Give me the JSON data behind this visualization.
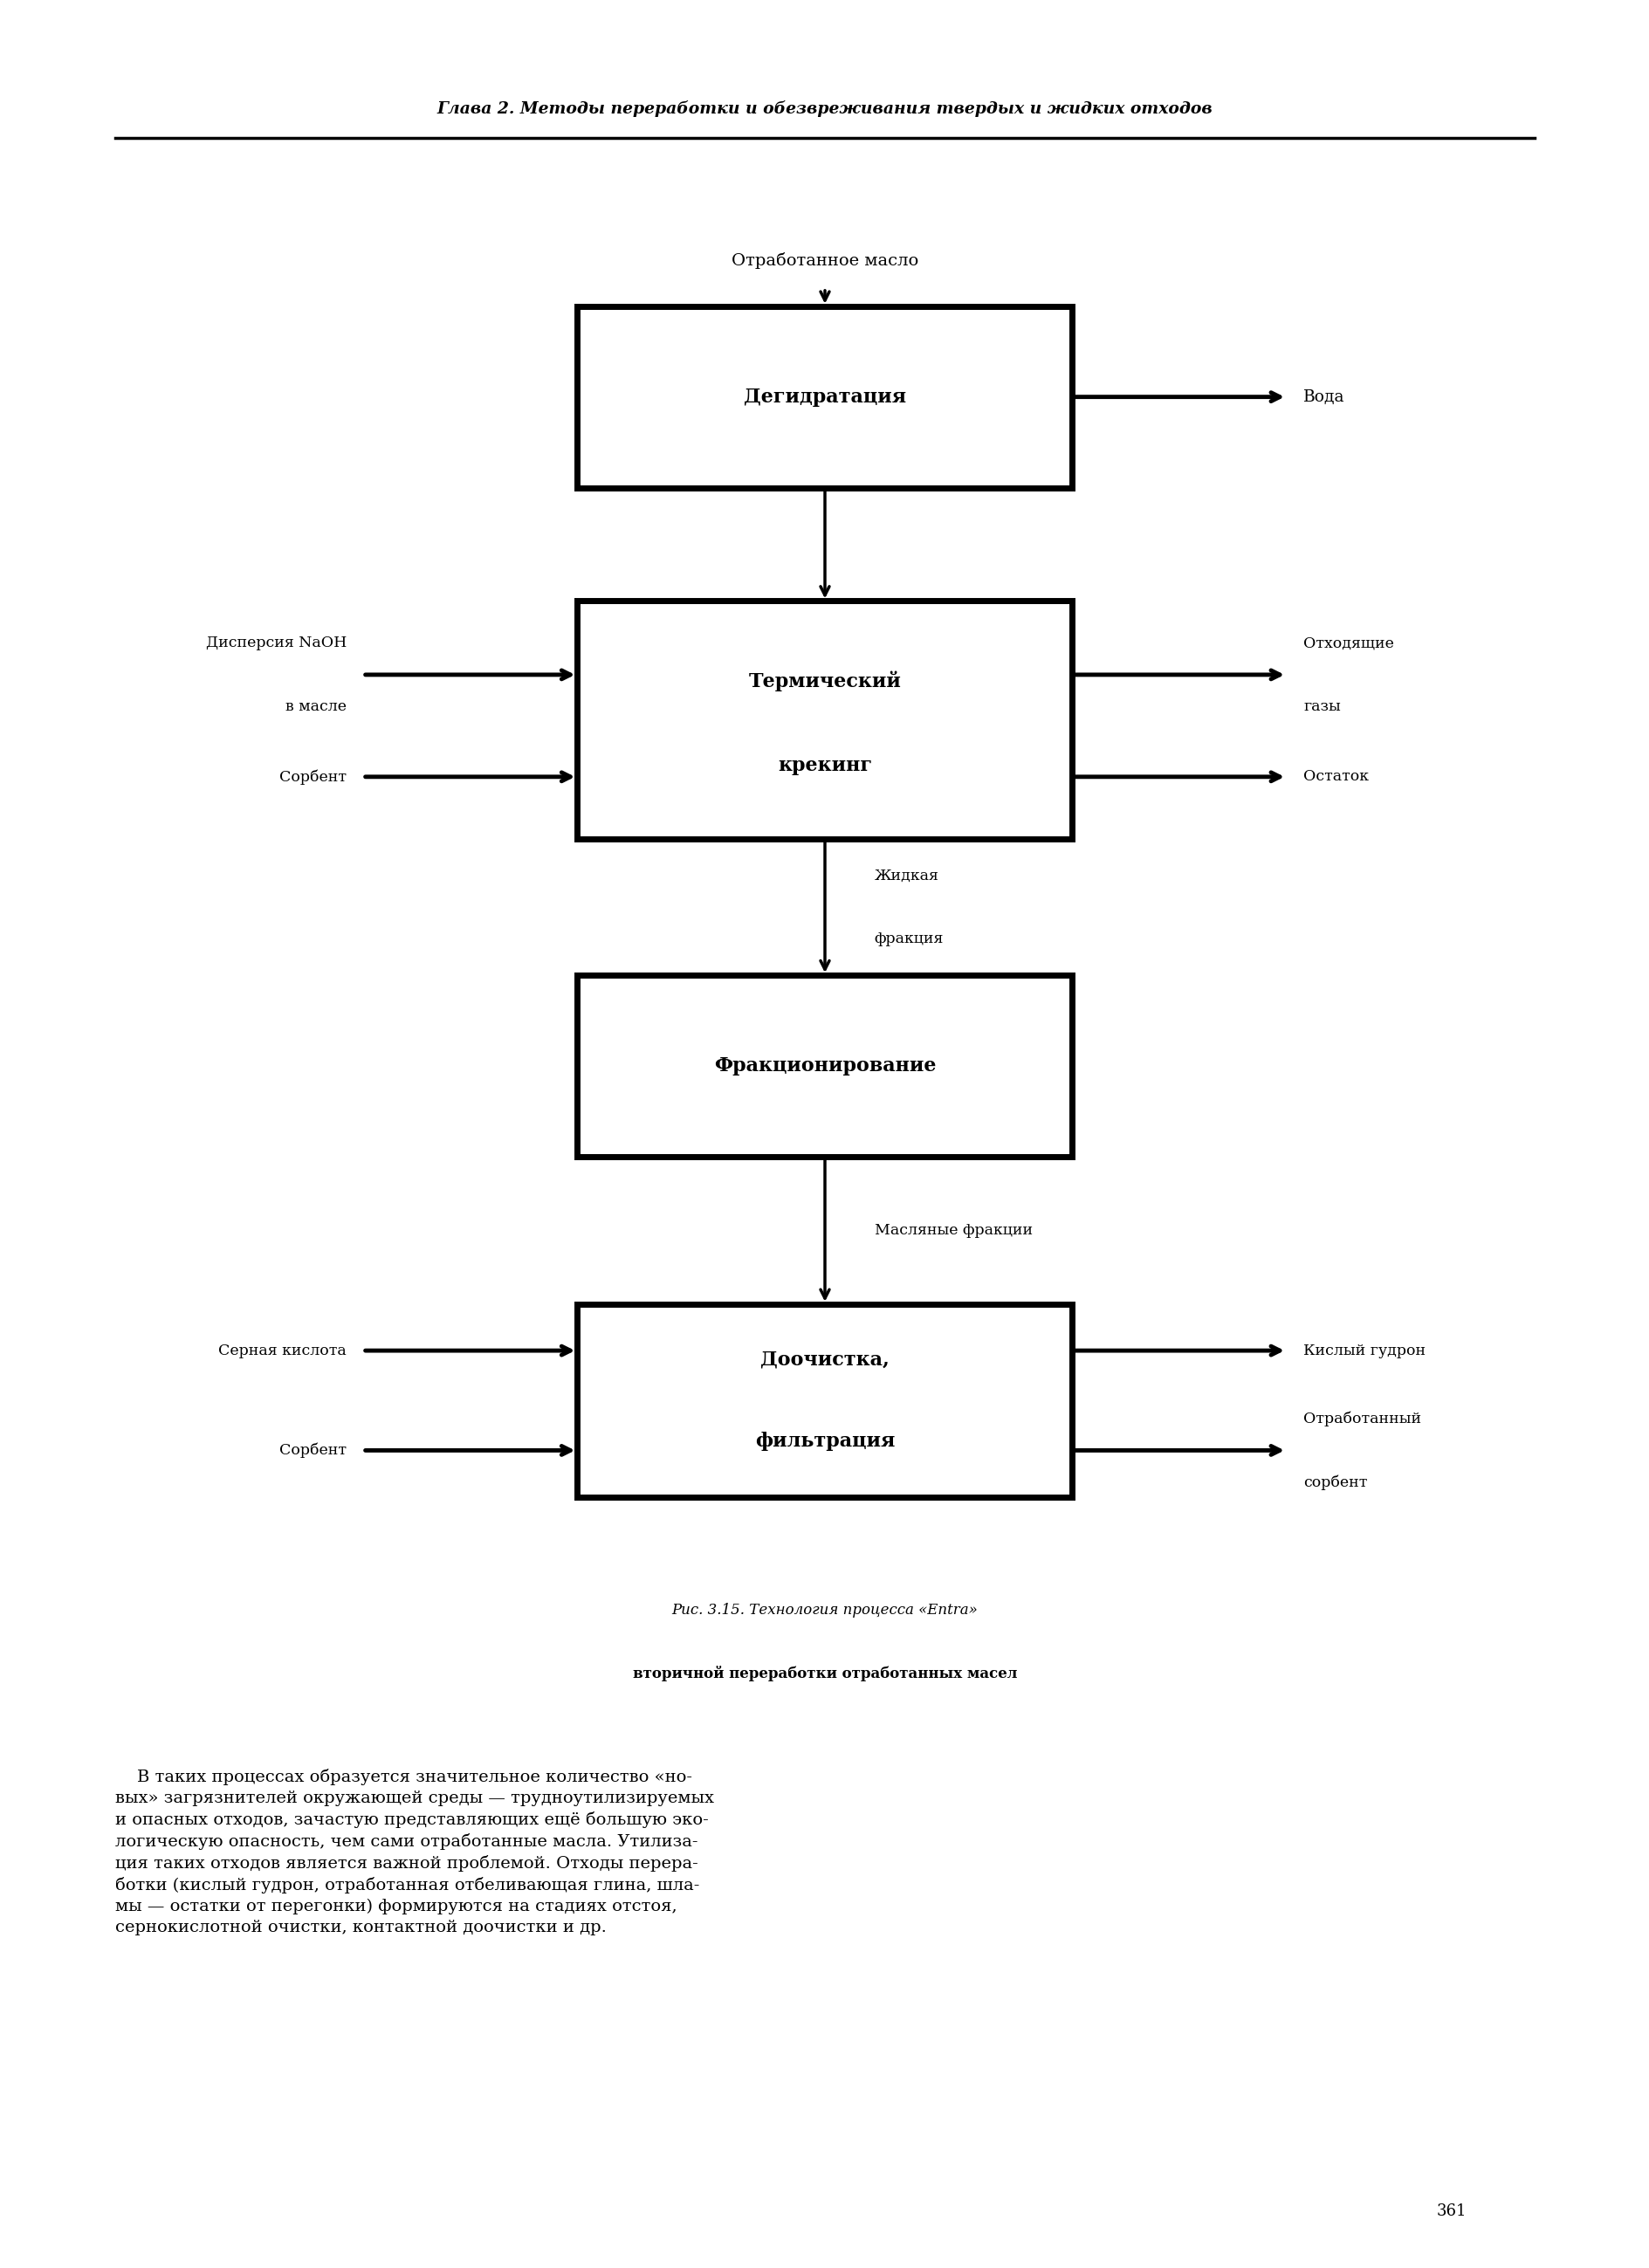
{
  "bg_color": "#ffffff",
  "header_text": "Глава 2. Методы переработки и обезвреживания твердых и жидких отходов",
  "top_label": "Отработанное масло",
  "caption": "Рис. 3.15. Технология процесса «Entra»\nвторичной переработки отработанных масел",
  "body_text": "В таких процессах образуется значительное количество «но-\nвых» загрязнителей окружающей среды — трудноутилизируемых\nи опасных отходов, зачастую представляющих ещё большую эко-\nлогическую опасность, чем сами отработанные масла. Утилиза-\nция таких отходов является важной проблемой. Отходы перера-\nботки (кислый гудрон, отработанная отбеливающая глина, шла-\nмы — остатки от перегонки) формируются на стадиях отстоя,\nсернокислотной очистки, контактной доочистки и др.",
  "page_number": "361"
}
